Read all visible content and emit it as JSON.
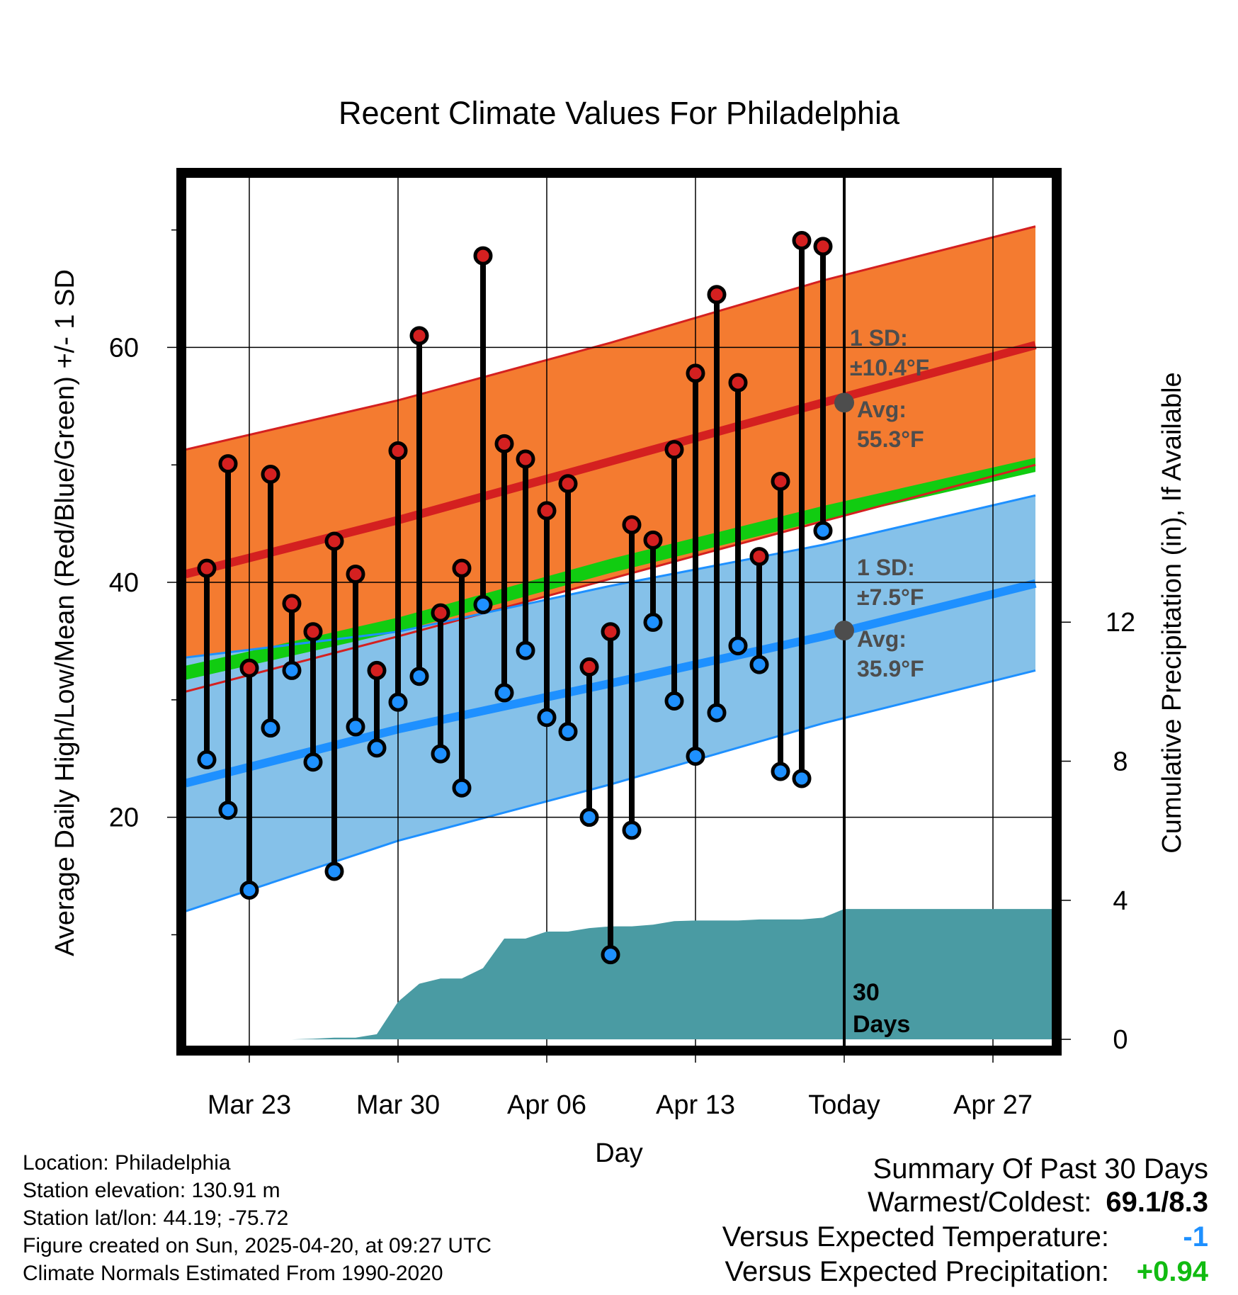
{
  "chart_data": {
    "type": "line",
    "title": "Recent Climate Values For Philadelphia",
    "xlabel": "Day",
    "ylabel": "Average Daily High/Low/Mean (Red/Blue/Green) +/- 1 SD",
    "y2label": "Cumulative Precipitation (in), If Available",
    "xlim": [
      0,
      40.8
    ],
    "ylim": [
      0.5,
      74.5
    ],
    "y2lim": [
      -0.2,
      24.8
    ],
    "x_ticks": [
      {
        "x": 3,
        "label": "Mar 23"
      },
      {
        "x": 10,
        "label": "Mar 30"
      },
      {
        "x": 17,
        "label": "Apr 06"
      },
      {
        "x": 24,
        "label": "Apr 13"
      },
      {
        "x": 31,
        "label": "Today"
      },
      {
        "x": 38,
        "label": "Apr 27"
      }
    ],
    "y_ticks": [
      {
        "y": 20,
        "label": "20"
      },
      {
        "y": 40,
        "label": "40"
      },
      {
        "y": 60,
        "label": "60"
      }
    ],
    "y_minor_ticks": [
      10,
      30,
      50,
      70
    ],
    "y2_ticks": [
      {
        "y": 0,
        "label": "0"
      },
      {
        "y": 4,
        "label": "4"
      },
      {
        "y": 8,
        "label": "8"
      },
      {
        "y": 12,
        "label": "12"
      }
    ],
    "today_x": 31,
    "today_label": "30 Days",
    "grid": true,
    "normals": {
      "x": [
        0,
        10,
        20,
        30,
        40
      ],
      "high_mean": [
        40.7,
        45.3,
        50.3,
        55.3,
        60.2
      ],
      "high_sd_upper": [
        51.3,
        55.5,
        60.4,
        65.7,
        70.3
      ],
      "high_sd_lower": [
        30.7,
        35.4,
        40.3,
        45.2,
        50.0
      ],
      "low_mean": [
        22.9,
        27.5,
        31.4,
        35.4,
        39.9
      ],
      "low_sd_upper": [
        33.6,
        35.8,
        39.7,
        43.2,
        47.4
      ],
      "low_sd_lower": [
        12.0,
        18.0,
        22.8,
        28.0,
        32.5
      ],
      "mean_lower": [
        31.7,
        35.8,
        40.8,
        45.3,
        49.4
      ],
      "mean_upper": [
        32.9,
        37.0,
        42.0,
        46.5,
        50.6
      ]
    },
    "series": [
      {
        "name": "High",
        "color": "#d42020",
        "x": [
          1,
          2,
          3,
          4,
          5,
          6,
          7,
          8,
          9,
          10,
          11,
          12,
          13,
          14,
          15,
          16,
          17,
          18,
          19,
          20,
          21,
          22,
          23,
          24,
          25,
          26,
          27,
          28,
          29,
          30
        ],
        "values": [
          41.2,
          50.1,
          32.7,
          49.2,
          38.2,
          35.8,
          43.5,
          40.7,
          32.5,
          51.2,
          61.0,
          37.4,
          41.2,
          67.8,
          51.8,
          50.5,
          46.1,
          48.4,
          32.8,
          35.8,
          44.9,
          43.6,
          51.3,
          57.8,
          64.5,
          57.0,
          42.2,
          48.6,
          69.1,
          68.6
        ]
      },
      {
        "name": "Low",
        "color": "#1e90ff",
        "x": [
          1,
          2,
          3,
          4,
          5,
          6,
          7,
          8,
          9,
          10,
          11,
          12,
          13,
          14,
          15,
          16,
          17,
          18,
          19,
          20,
          21,
          22,
          23,
          24,
          25,
          26,
          27,
          28,
          29,
          30
        ],
        "values": [
          24.9,
          20.6,
          13.8,
          27.6,
          32.5,
          24.7,
          15.4,
          27.7,
          25.9,
          29.8,
          32.0,
          25.4,
          22.5,
          38.1,
          30.6,
          34.2,
          28.5,
          27.3,
          20.0,
          8.3,
          18.9,
          36.6,
          29.9,
          25.2,
          28.9,
          34.6,
          33.0,
          23.9,
          23.3,
          44.4
        ]
      },
      {
        "name": "Precipitation",
        "color": "#4a9ba3",
        "x": [
          1,
          2,
          3,
          4,
          5,
          6,
          7,
          8,
          9,
          10,
          11,
          12,
          13,
          14,
          15,
          16,
          17,
          18,
          19,
          20,
          21,
          22,
          23,
          24,
          25,
          26,
          27,
          28,
          29,
          30,
          31,
          32,
          33,
          34,
          35,
          36,
          37,
          38,
          39,
          40,
          40.8
        ],
        "values": [
          0,
          0,
          0,
          0,
          0,
          0.02,
          0.05,
          0.05,
          0.15,
          1.08,
          1.6,
          1.75,
          1.75,
          2.05,
          2.9,
          2.9,
          3.1,
          3.1,
          3.2,
          3.25,
          3.25,
          3.3,
          3.4,
          3.42,
          3.42,
          3.42,
          3.45,
          3.45,
          3.45,
          3.5,
          3.75,
          3.75,
          3.75,
          3.75,
          3.75,
          3.75,
          3.75,
          3.75,
          3.75,
          3.75,
          3.75
        ]
      }
    ],
    "annotations": {
      "high_sd": [
        "1 SD:",
        "±10.4°F"
      ],
      "high_avg": [
        "Avg:",
        "55.3°F"
      ],
      "low_sd": [
        "1 SD:",
        "±7.5°F"
      ],
      "low_avg": [
        "Avg:",
        "35.9°F"
      ]
    }
  },
  "colors": {
    "high_band": "#f47b30",
    "high_line": "#d42020",
    "low_band": "#85c1e9",
    "low_line": "#1e90ff",
    "mean_band": "#11cc11",
    "precip": "#4a9ba3",
    "annot": "#4d4d4d"
  },
  "info": {
    "location": "Location: Philadelphia",
    "elevation": "Station elevation: 130.91 m",
    "latlon": "Station lat/lon: 44.19; -75.72",
    "created": "Figure created on Sun, 2025-04-20, at 09:27 UTC",
    "normals": "Climate Normals Estimated From 1990-2020"
  },
  "summary": {
    "heading": "Summary Of Past 30 Days",
    "warm_cold_label": "Warmest/Coldest:",
    "warm_cold_value": "69.1/8.3",
    "temp_label": "Versus Expected Temperature:",
    "temp_value": "-1",
    "temp_color": "#1e90ff",
    "precip_label": "Versus Expected Precipitation:",
    "precip_value": "+0.94",
    "precip_color": "#11bb11"
  }
}
